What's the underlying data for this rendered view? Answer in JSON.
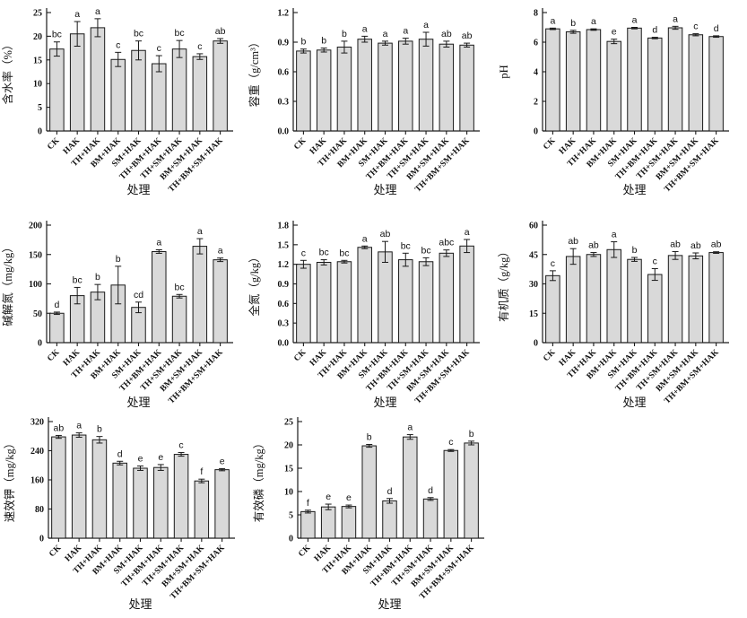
{
  "figure": {
    "background": "#ffffff",
    "bar_fill": "#d9d9d9",
    "bar_stroke": "#1a1a1a",
    "axis_color": "#1a1a1a",
    "text_color": "#111111"
  },
  "chart_data": [
    {
      "type": "bar",
      "panel_id": "water-content",
      "ylabel": "含水率（%）",
      "xlabel": "处理",
      "categories": [
        "CK",
        "HAK",
        "TH+HAK",
        "BM+HAK",
        "SM+HAK",
        "TH+BM+HAK",
        "TH+SM+HAK",
        "BM+SM+HAK",
        "TH+BM+SM+HAK"
      ],
      "values": [
        17.3,
        20.5,
        21.8,
        15.1,
        17.0,
        14.2,
        17.3,
        15.7,
        19.0
      ],
      "errors": [
        1.5,
        2.6,
        1.9,
        1.5,
        2.0,
        1.7,
        1.8,
        0.6,
        0.5
      ],
      "sig_letters": [
        "bc",
        "a",
        "a",
        "c",
        "bc",
        "c",
        "bc",
        "c",
        "ab"
      ],
      "ylim": [
        0,
        25
      ],
      "yticks": [
        0,
        5,
        10,
        15,
        20,
        25
      ],
      "ytick_labels": [
        "0",
        "5",
        "10",
        "15",
        "20",
        "25"
      ],
      "grid": false
    },
    {
      "type": "bar",
      "panel_id": "bulk-density",
      "ylabel": "容重（g/cm³）",
      "xlabel": "处理",
      "categories": [
        "CK",
        "HAK",
        "TH+HAK",
        "BM+HAK",
        "SM+HAK",
        "TH+BM+HAK",
        "TH+SM+HAK",
        "BM+SM+HAK",
        "TH+BM+SM+HAK"
      ],
      "values": [
        0.81,
        0.82,
        0.85,
        0.93,
        0.89,
        0.91,
        0.93,
        0.88,
        0.87
      ],
      "errors": [
        0.02,
        0.02,
        0.06,
        0.03,
        0.02,
        0.03,
        0.07,
        0.03,
        0.02
      ],
      "sig_letters": [
        "b",
        "b",
        "b",
        "a",
        "a",
        "a",
        "a",
        "ab",
        "ab"
      ],
      "ylim": [
        0,
        1.2
      ],
      "yticks": [
        0,
        0.3,
        0.6,
        0.9,
        1.2
      ],
      "ytick_labels": [
        "0.0",
        "0.3",
        "0.6",
        "0.9",
        "1.2"
      ],
      "grid": false
    },
    {
      "type": "bar",
      "panel_id": "ph",
      "ylabel": "pH",
      "xlabel": "处理",
      "categories": [
        "CK",
        "HAK",
        "TH+HAK",
        "BM+HAK",
        "SM+HAK",
        "TH+BM+HAK",
        "TH+SM+HAK",
        "BM+SM+HAK",
        "TH+BM+SM+HAK"
      ],
      "values": [
        6.9,
        6.7,
        6.85,
        6.05,
        6.95,
        6.28,
        6.97,
        6.5,
        6.38
      ],
      "errors": [
        0.05,
        0.1,
        0.05,
        0.15,
        0.05,
        0.05,
        0.1,
        0.07,
        0.05
      ],
      "sig_letters": [
        "a",
        "b",
        "a",
        "e",
        "a",
        "d",
        "a",
        "c",
        "d"
      ],
      "ylim": [
        0,
        8
      ],
      "yticks": [
        0,
        2,
        4,
        6,
        8
      ],
      "ytick_labels": [
        "0",
        "2",
        "4",
        "6",
        "8"
      ],
      "grid": false
    },
    {
      "type": "bar",
      "panel_id": "alkali-nitrogen",
      "ylabel": "碱解氮（mg/kg）",
      "xlabel": "处理",
      "categories": [
        "CK",
        "HAK",
        "TH+HAK",
        "BM+HAK",
        "SM+HAK",
        "TH+BM+HAK",
        "TH+SM+HAK",
        "BM+SM+HAK",
        "TH+BM+SM+HAK"
      ],
      "values": [
        50,
        80,
        86,
        98,
        60,
        155,
        79,
        164,
        141
      ],
      "errors": [
        2,
        14,
        13,
        32,
        9,
        3,
        3,
        13,
        3
      ],
      "sig_letters": [
        "d",
        "bc",
        "b",
        "b",
        "cd",
        "a",
        "bc",
        "a",
        "a"
      ],
      "ylim": [
        0,
        200
      ],
      "yticks": [
        0,
        50,
        100,
        150,
        200
      ],
      "ytick_labels": [
        "0",
        "50",
        "100",
        "150",
        "200"
      ],
      "grid": false
    },
    {
      "type": "bar",
      "panel_id": "total-nitrogen",
      "ylabel": "全氮（g/kg）",
      "xlabel": "处理",
      "categories": [
        "CK",
        "HAK",
        "TH+HAK",
        "BM+HAK",
        "SM+HAK",
        "TH+BM+HAK",
        "TH+SM+HAK",
        "BM+SM+HAK",
        "TH+BM+SM+HAK"
      ],
      "values": [
        1.2,
        1.23,
        1.24,
        1.46,
        1.39,
        1.27,
        1.24,
        1.37,
        1.48
      ],
      "errors": [
        0.06,
        0.04,
        0.02,
        0.02,
        0.16,
        0.1,
        0.06,
        0.05,
        0.1
      ],
      "sig_letters": [
        "c",
        "bc",
        "bc",
        "a",
        "ab",
        "bc",
        "bc",
        "abc",
        "a"
      ],
      "ylim": [
        0,
        1.8
      ],
      "yticks": [
        0,
        0.3,
        0.6,
        0.9,
        1.2,
        1.5,
        1.8
      ],
      "ytick_labels": [
        "0.0",
        "0.3",
        "0.6",
        "0.9",
        "1.2",
        "1.5",
        "1.8"
      ],
      "grid": false
    },
    {
      "type": "bar",
      "panel_id": "organic-matter",
      "ylabel": "有机质（g/kg）",
      "xlabel": "处理",
      "categories": [
        "CK",
        "HAK",
        "TH+HAK",
        "BM+HAK",
        "SM+HAK",
        "TH+BM+HAK",
        "TH+SM+HAK",
        "BM+SM+HAK",
        "TH+BM+SM+HAK"
      ],
      "values": [
        34.2,
        44.0,
        45.0,
        47.5,
        42.5,
        34.8,
        44.5,
        44.3,
        46.0
      ],
      "errors": [
        2.5,
        4.0,
        1.0,
        4.0,
        1.0,
        3.0,
        2.0,
        1.5,
        0.4
      ],
      "sig_letters": [
        "c",
        "ab",
        "ab",
        "a",
        "b",
        "c",
        "ab",
        "ab",
        "ab"
      ],
      "ylim": [
        0,
        60
      ],
      "yticks": [
        0,
        15,
        30,
        45,
        60
      ],
      "ytick_labels": [
        "0",
        "15",
        "30",
        "45",
        "60"
      ],
      "grid": false
    },
    {
      "type": "bar",
      "panel_id": "available-potassium",
      "ylabel": "速效钾（mg/kg）",
      "xlabel": "处理",
      "categories": [
        "CK",
        "HAK",
        "TH+HAK",
        "BM+HAK",
        "SM+HAK",
        "TH+BM+HAK",
        "TH+SM+HAK",
        "BM+SM+HAK",
        "TH+BM+SM+HAK"
      ],
      "values": [
        278,
        283,
        270,
        206,
        192,
        194,
        230,
        157,
        188
      ],
      "errors": [
        4,
        6,
        9,
        5,
        6,
        8,
        5,
        5,
        3
      ],
      "sig_letters": [
        "ab",
        "a",
        "b",
        "d",
        "e",
        "e",
        "c",
        "f",
        "e"
      ],
      "ylim": [
        0,
        320
      ],
      "yticks": [
        0,
        80,
        160,
        240,
        320
      ],
      "ytick_labels": [
        "0",
        "80",
        "160",
        "240",
        "320"
      ],
      "grid": false
    },
    {
      "type": "bar",
      "panel_id": "available-phosphorus",
      "ylabel": "有效磷（mg/kg）",
      "xlabel": "处理",
      "categories": [
        "CK",
        "HAK",
        "TH+HAK",
        "BM+HAK",
        "SM+HAK",
        "TH+BM+HAK",
        "TH+SM+HAK",
        "BM+SM+HAK",
        "TH+BM+SM+HAK"
      ],
      "values": [
        5.7,
        6.7,
        6.8,
        19.8,
        8.0,
        21.7,
        8.4,
        18.8,
        20.4
      ],
      "errors": [
        0.3,
        0.6,
        0.3,
        0.3,
        0.5,
        0.5,
        0.3,
        0.2,
        0.4
      ],
      "sig_letters": [
        "f",
        "e",
        "e",
        "b",
        "d",
        "a",
        "d",
        "c",
        "b"
      ],
      "ylim": [
        0,
        25
      ],
      "yticks": [
        0,
        5,
        10,
        15,
        20,
        25
      ],
      "ytick_labels": [
        "0",
        "5",
        "10",
        "15",
        "20",
        "25"
      ],
      "grid": false
    }
  ]
}
